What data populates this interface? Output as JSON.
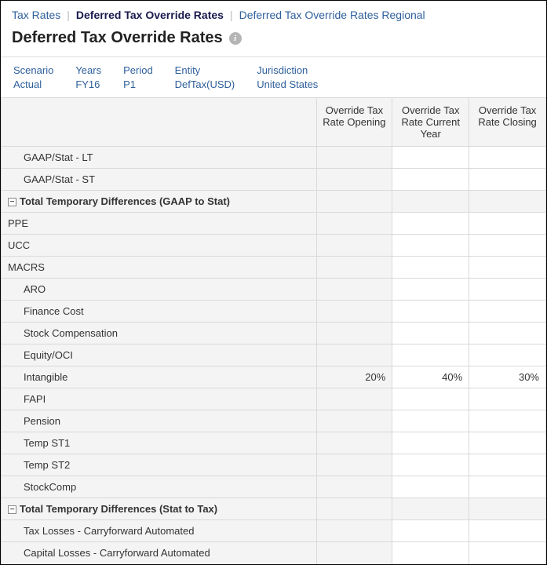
{
  "tabs": {
    "t0": "Tax Rates",
    "t1": "Deferred Tax Override Rates",
    "t2": "Deferred Tax Override Rates Regional",
    "activeIndex": 1
  },
  "title": "Deferred Tax Override Rates",
  "pov": {
    "scenario": {
      "label": "Scenario",
      "value": "Actual"
    },
    "years": {
      "label": "Years",
      "value": "FY16"
    },
    "period": {
      "label": "Period",
      "value": "P1"
    },
    "entity": {
      "label": "Entity",
      "value": "DefTax(USD)"
    },
    "jurisdiction": {
      "label": "Jurisdiction",
      "value": "United States"
    }
  },
  "columns": {
    "c1": "Override Tax Rate Opening",
    "c2": "Override Tax Rate Current Year",
    "c3": "Override Tax Rate Closing"
  },
  "rows": {
    "r0": {
      "label": "GAAP/Stat - LT"
    },
    "r1": {
      "label": "GAAP/Stat - ST"
    },
    "r2": {
      "label": "Total Temporary Differences (GAAP to Stat)"
    },
    "r3": {
      "label": "PPE"
    },
    "r4": {
      "label": "UCC"
    },
    "r5": {
      "label": "MACRS"
    },
    "r6": {
      "label": "ARO"
    },
    "r7": {
      "label": "Finance Cost"
    },
    "r8": {
      "label": "Stock Compensation"
    },
    "r9": {
      "label": "Equity/OCI"
    },
    "r10": {
      "label": "Intangible",
      "v1": "20%",
      "v2": "40%",
      "v3": "30%"
    },
    "r11": {
      "label": "FAPI"
    },
    "r12": {
      "label": "Pension"
    },
    "r13": {
      "label": "Temp ST1"
    },
    "r14": {
      "label": "Temp ST2"
    },
    "r15": {
      "label": "StockComp"
    },
    "r16": {
      "label": "Total Temporary Differences (Stat to Tax)"
    },
    "r17": {
      "label": "Tax Losses - Carryforward Automated"
    },
    "r18": {
      "label": "Capital Losses - Carryforward Automated"
    }
  },
  "style": {
    "headerBg": "#f4f4f4",
    "borderColor": "#d9d9d9",
    "linkColor": "#2e5f9b",
    "textColor": "#333333"
  }
}
